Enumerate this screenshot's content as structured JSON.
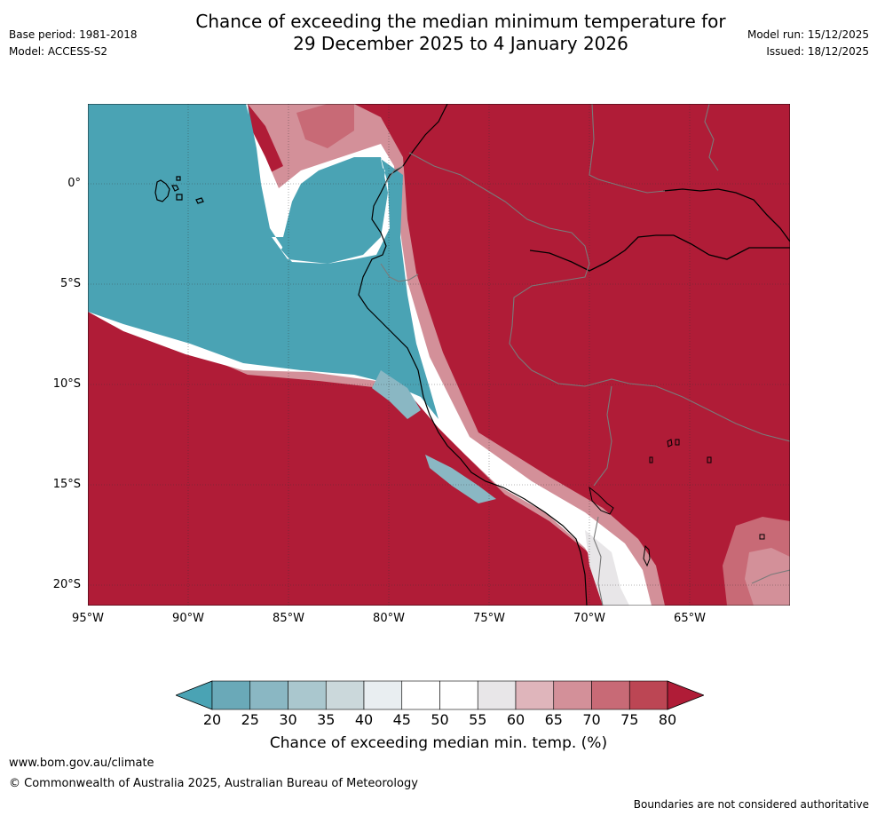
{
  "title": {
    "line1": "Chance of exceeding the median minimum temperature for",
    "line2": "29 December 2025 to 4 January 2026"
  },
  "meta_left": {
    "base_period": "Base period: 1981-2018",
    "model": "Model: ACCESS-S2"
  },
  "meta_right": {
    "model_run": "Model run: 15/12/2025",
    "issued": "Issued: 18/12/2025"
  },
  "map": {
    "lat_labels": [
      "0°",
      "5°S",
      "10°S",
      "15°S",
      "20°S"
    ],
    "lon_labels": [
      "95°W",
      "90°W",
      "85°W",
      "80°W",
      "75°W",
      "70°W",
      "65°W"
    ]
  },
  "colorbar": {
    "ticks": [
      "20",
      "25",
      "30",
      "35",
      "40",
      "45",
      "50",
      "55",
      "60",
      "65",
      "70",
      "75",
      "80"
    ],
    "colors": [
      "#4aa3b4",
      "#6aa9b8",
      "#8ab7c3",
      "#aac7ce",
      "#cbd8db",
      "#e9eef1",
      "#ffffff",
      "#ffffff",
      "#e8e6e8",
      "#dfb5bb",
      "#d39099",
      "#c86a76",
      "#bc4654",
      "#b01c37"
    ],
    "label": "Chance of exceeding median min. temp. (%)"
  },
  "footer": {
    "url": "www.bom.gov.au/climate",
    "copyright": "© Commonwealth of Australia 2025, Australian Bureau of Meteorology",
    "disclaimer": "Boundaries are not considered authoritative"
  }
}
